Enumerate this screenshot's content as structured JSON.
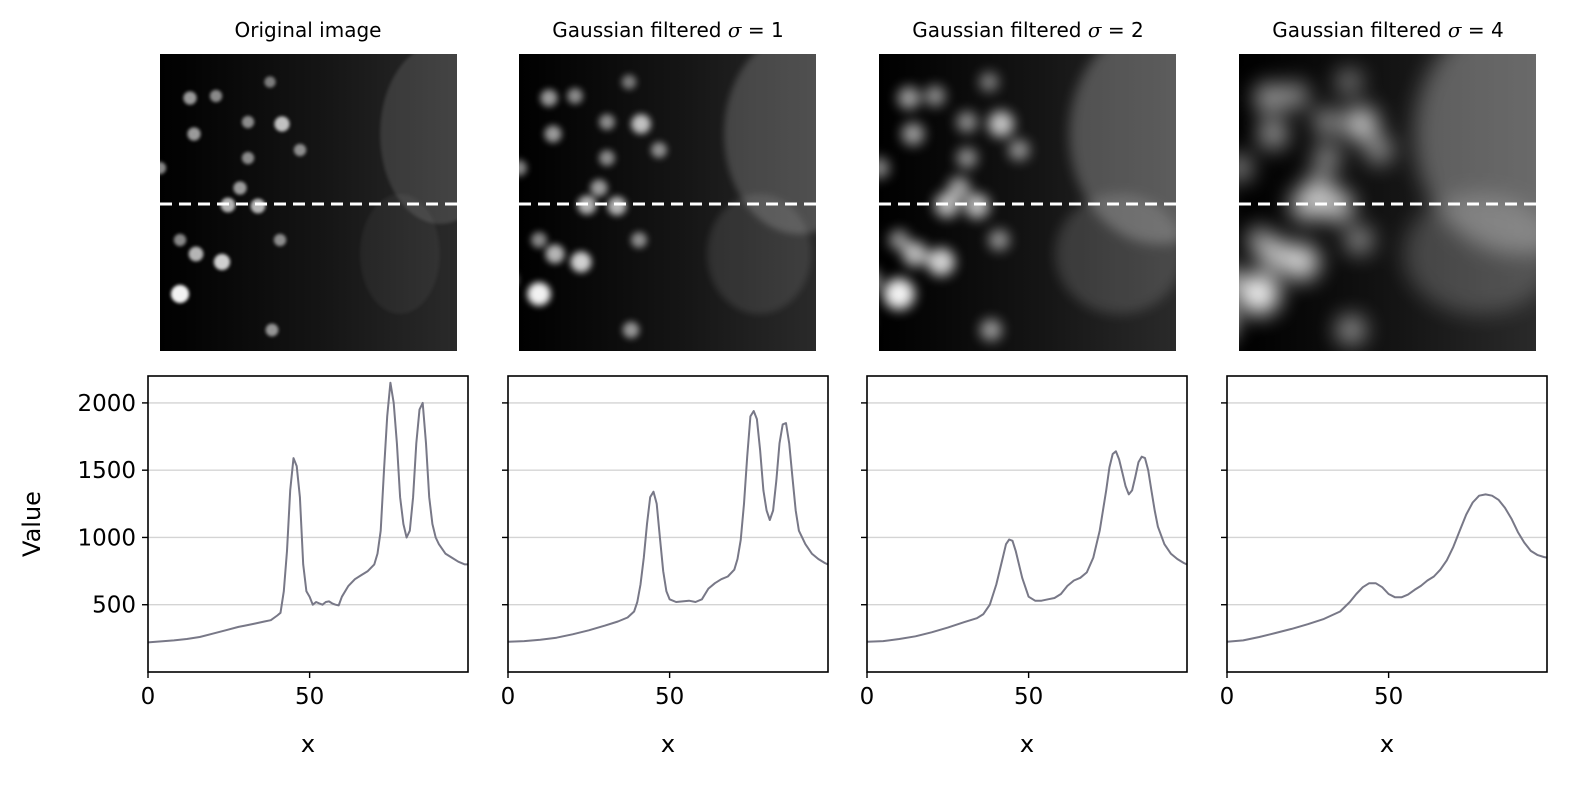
{
  "figure": {
    "ylabel": "Value",
    "panels": [
      {
        "title_prefix": "Original image",
        "sigma_symbol": "",
        "sigma_eq": "",
        "sigma_val": "",
        "xlabel": "x"
      },
      {
        "title_prefix": "Gaussian filtered ",
        "sigma_symbol": "σ",
        "sigma_eq": " = ",
        "sigma_val": "1",
        "xlabel": "x"
      },
      {
        "title_prefix": "Gaussian filtered ",
        "sigma_symbol": "σ",
        "sigma_eq": " = ",
        "sigma_val": "2",
        "xlabel": "x"
      },
      {
        "title_prefix": "Gaussian filtered ",
        "sigma_symbol": "σ",
        "sigma_eq": " = ",
        "sigma_val": "4",
        "xlabel": "x"
      }
    ]
  },
  "chart_data": [
    {
      "type": "line",
      "title": "Original image",
      "xlabel": "x",
      "ylabel": "Value",
      "xlim": [
        0,
        99
      ],
      "ylim": [
        0,
        2200
      ],
      "xticks": [
        0,
        50
      ],
      "yticks": [
        500,
        1000,
        1500,
        2000
      ],
      "grid": "y",
      "color": "#787887",
      "x": [
        0,
        5,
        8,
        12,
        16,
        20,
        24,
        28,
        30,
        33,
        36,
        38,
        40,
        41,
        42,
        43,
        44,
        45,
        46,
        47,
        48,
        49,
        50,
        51,
        52,
        53,
        54,
        55,
        56,
        57,
        58,
        59,
        60,
        62,
        64,
        66,
        68,
        70,
        71,
        72,
        73,
        74,
        75,
        76,
        77,
        78,
        79,
        80,
        81,
        82,
        83,
        84,
        85,
        86,
        87,
        88,
        89,
        90,
        92,
        94,
        96,
        98,
        99
      ],
      "values": [
        220,
        230,
        235,
        245,
        260,
        285,
        310,
        335,
        345,
        360,
        375,
        385,
        420,
        440,
        600,
        900,
        1350,
        1590,
        1530,
        1300,
        800,
        600,
        560,
        500,
        520,
        510,
        500,
        520,
        525,
        510,
        500,
        495,
        560,
        640,
        690,
        720,
        750,
        800,
        880,
        1050,
        1500,
        1900,
        2150,
        2000,
        1700,
        1300,
        1100,
        1000,
        1050,
        1300,
        1700,
        1950,
        2000,
        1700,
        1300,
        1100,
        1000,
        950,
        880,
        850,
        820,
        800,
        800
      ]
    },
    {
      "type": "line",
      "title": "Gaussian filtered σ = 1",
      "xlabel": "x",
      "ylabel": "Value",
      "xlim": [
        0,
        99
      ],
      "ylim": [
        0,
        2200
      ],
      "xticks": [
        0,
        50
      ],
      "yticks": [
        500,
        1000,
        1500,
        2000
      ],
      "grid": "y",
      "color": "#787887",
      "x": [
        0,
        5,
        10,
        15,
        20,
        25,
        30,
        34,
        37,
        39,
        40,
        41,
        42,
        43,
        44,
        45,
        46,
        47,
        48,
        49,
        50,
        52,
        54,
        56,
        58,
        60,
        62,
        64,
        66,
        68,
        70,
        71,
        72,
        73,
        74,
        75,
        76,
        77,
        78,
        79,
        80,
        81,
        82,
        83,
        84,
        85,
        86,
        87,
        88,
        89,
        90,
        92,
        94,
        96,
        98,
        99
      ],
      "values": [
        225,
        230,
        240,
        255,
        280,
        310,
        345,
        375,
        405,
        450,
        520,
        650,
        850,
        1100,
        1300,
        1340,
        1250,
        1000,
        750,
        600,
        540,
        520,
        525,
        530,
        520,
        540,
        620,
        660,
        690,
        710,
        760,
        840,
        980,
        1250,
        1600,
        1900,
        1940,
        1880,
        1650,
        1350,
        1200,
        1130,
        1200,
        1420,
        1700,
        1840,
        1850,
        1700,
        1450,
        1200,
        1050,
        950,
        880,
        840,
        810,
        800
      ]
    },
    {
      "type": "line",
      "title": "Gaussian filtered σ = 2",
      "xlabel": "x",
      "ylabel": "Value",
      "xlim": [
        0,
        99
      ],
      "ylim": [
        0,
        2200
      ],
      "xticks": [
        0,
        50
      ],
      "yticks": [
        500,
        1000,
        1500,
        2000
      ],
      "grid": "y",
      "color": "#787887",
      "x": [
        0,
        5,
        10,
        15,
        20,
        25,
        30,
        34,
        36,
        38,
        40,
        42,
        43,
        44,
        45,
        46,
        48,
        50,
        52,
        54,
        56,
        58,
        60,
        62,
        64,
        66,
        68,
        70,
        72,
        74,
        75,
        76,
        77,
        78,
        79,
        80,
        81,
        82,
        83,
        84,
        85,
        86,
        87,
        88,
        89,
        90,
        92,
        94,
        96,
        98,
        99
      ],
      "values": [
        225,
        230,
        245,
        265,
        295,
        330,
        370,
        400,
        430,
        500,
        650,
        850,
        950,
        985,
        975,
        900,
        700,
        560,
        530,
        530,
        540,
        550,
        580,
        640,
        680,
        700,
        740,
        850,
        1050,
        1350,
        1520,
        1620,
        1640,
        1580,
        1480,
        1380,
        1320,
        1350,
        1450,
        1560,
        1600,
        1590,
        1500,
        1350,
        1200,
        1080,
        950,
        880,
        840,
        810,
        800
      ]
    },
    {
      "type": "line",
      "title": "Gaussian filtered σ = 4",
      "xlabel": "x",
      "ylabel": "Value",
      "xlim": [
        0,
        99
      ],
      "ylim": [
        0,
        2200
      ],
      "xticks": [
        0,
        50
      ],
      "yticks": [
        500,
        1000,
        1500,
        2000
      ],
      "grid": "y",
      "color": "#787887",
      "x": [
        0,
        5,
        10,
        15,
        20,
        25,
        30,
        35,
        38,
        40,
        42,
        44,
        46,
        48,
        50,
        52,
        54,
        56,
        58,
        60,
        62,
        64,
        66,
        68,
        70,
        72,
        74,
        76,
        78,
        80,
        82,
        84,
        86,
        88,
        90,
        92,
        94,
        96,
        98,
        99
      ],
      "values": [
        225,
        235,
        260,
        290,
        320,
        355,
        395,
        450,
        520,
        580,
        630,
        660,
        660,
        630,
        580,
        555,
        555,
        575,
        610,
        640,
        680,
        710,
        760,
        830,
        930,
        1050,
        1170,
        1260,
        1310,
        1320,
        1310,
        1280,
        1220,
        1140,
        1040,
        960,
        900,
        870,
        855,
        850
      ]
    }
  ]
}
